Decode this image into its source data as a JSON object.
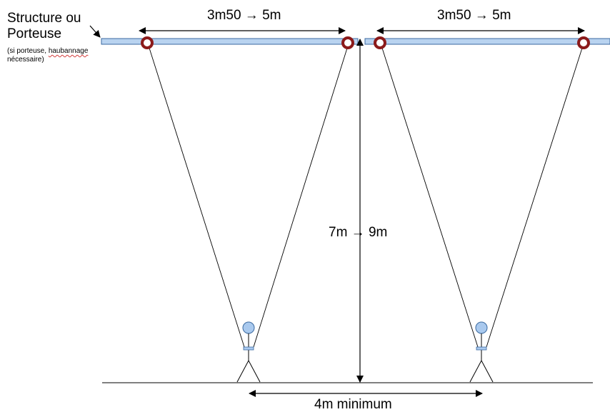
{
  "labels": {
    "structure_title_line1": "Structure ou",
    "structure_title_line2": "Porteuse",
    "note_line1_a": "(si porteuse, ",
    "note_line1_b": "haubannage",
    "note_line2": "nécessaire)",
    "span_left": "3m50 → 5m",
    "span_right": "3m50 → 5m",
    "height": "7m → 9m",
    "spacing": "4m minimum"
  },
  "colors": {
    "beam_fill": "#b9d3f0",
    "beam_stroke": "#3b6aa0",
    "ring": "#8b1a1a",
    "person": "#a9c9ee",
    "line": "#000000"
  }
}
